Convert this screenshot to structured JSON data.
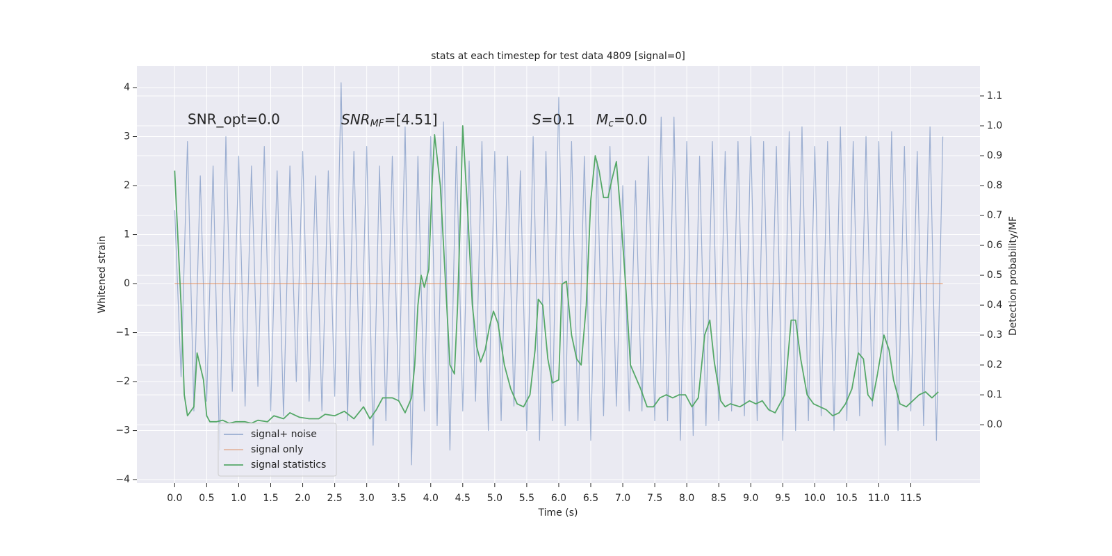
{
  "chart_data": {
    "type": "line",
    "title": "stats at each timestep for test data 4809 [signal=0]",
    "xlabel": "Time (s)",
    "ylabel": "Whitened strain",
    "y2label": "Detection probability/MF",
    "xlim": [
      -0.59,
      12.58
    ],
    "ylim": [
      -4.07,
      4.44
    ],
    "y2lim": [
      -0.195,
      1.2
    ],
    "xticks": [
      {
        "value": 0,
        "label": "0.0"
      },
      0.5,
      {
        "value": 1,
        "label": "1.0"
      },
      1.5,
      {
        "value": 2,
        "label": "2.0"
      },
      2.5,
      {
        "value": 3,
        "label": "3.0"
      },
      3.5,
      {
        "value": 4,
        "label": "4.0"
      },
      4.5,
      {
        "value": 5,
        "label": "5.0"
      },
      5.5,
      {
        "value": 6,
        "label": "6.0"
      },
      6.5,
      {
        "value": 7,
        "label": "7.0"
      },
      7.5,
      {
        "value": 8,
        "label": "8.0"
      },
      8.5,
      {
        "value": 9,
        "label": "9.0"
      },
      9.5,
      {
        "value": 10,
        "label": "10.0"
      },
      10.5,
      {
        "value": 11,
        "label": "11.0"
      },
      11.5
    ],
    "yticks": [
      {
        "value": -4,
        "label": "−4"
      },
      {
        "value": -3,
        "label": "−3"
      },
      {
        "value": -2,
        "label": "−2"
      },
      {
        "value": -1,
        "label": "−1"
      },
      0,
      1,
      2,
      3,
      4
    ],
    "y2ticks": [
      {
        "value": 0,
        "label": "0.0"
      },
      0.1,
      0.2,
      0.3,
      0.4,
      0.5,
      0.6,
      0.7,
      0.8,
      0.9,
      {
        "value": 1,
        "label": "1.0"
      },
      1.1
    ],
    "grid": true,
    "legend": "lower left",
    "background": "#eaeaf2",
    "annotations": [
      {
        "text": "SNR_opt=0.0"
      },
      {
        "main": "SNR",
        "sub": "MF",
        "rest": "=[4.51]"
      },
      {
        "main": "S",
        "rest": "=0.1"
      },
      {
        "main": "M",
        "sub": "c",
        "rest": "=0.0"
      }
    ],
    "series": [
      {
        "name": "signal+ noise",
        "color": "#4c72b0",
        "opacity": 0.5,
        "x": [
          0,
          0.1,
          0.2,
          0.3,
          0.4,
          0.5,
          0.6,
          0.7,
          0.8,
          0.9,
          1,
          1.1,
          1.2,
          1.3,
          1.4,
          1.5,
          1.6,
          1.7,
          1.8,
          1.9,
          2,
          2.1,
          2.2,
          2.3,
          2.4,
          2.5,
          2.6,
          2.7,
          2.8,
          2.9,
          3,
          3.1,
          3.2,
          3.3,
          3.4,
          3.5,
          3.6,
          3.7,
          3.8,
          3.9,
          4,
          4.1,
          4.2,
          4.3,
          4.4,
          4.5,
          4.6,
          4.7,
          4.8,
          4.9,
          5,
          5.1,
          5.2,
          5.3,
          5.4,
          5.5,
          5.6,
          5.7,
          5.8,
          5.9,
          6,
          6.1,
          6.2,
          6.3,
          6.4,
          6.5,
          6.6,
          6.7,
          6.8,
          6.9,
          7,
          7.1,
          7.2,
          7.3,
          7.4,
          7.5,
          7.6,
          7.7,
          7.8,
          7.9,
          8,
          8.1,
          8.2,
          8.3,
          8.4,
          8.5,
          8.6,
          8.7,
          8.8,
          8.9,
          9,
          9.1,
          9.2,
          9.3,
          9.4,
          9.5,
          9.6,
          9.7,
          9.8,
          9.9,
          10,
          10.1,
          10.2,
          10.3,
          10.4,
          10.5,
          10.6,
          10.7,
          10.8,
          10.9,
          11,
          11.1,
          11.2,
          11.3,
          11.4,
          11.5,
          11.6,
          11.7,
          11.8,
          11.9,
          12
        ],
        "values": [
          1.5,
          -1.9,
          2.9,
          -2.6,
          2.2,
          -2.4,
          2.4,
          -3.4,
          3.0,
          -2.2,
          2.6,
          -2.5,
          2.4,
          -2.1,
          2.8,
          -2.6,
          2.3,
          -2.7,
          2.4,
          -2.0,
          2.7,
          -2.4,
          2.2,
          -2.6,
          2.3,
          -2.3,
          4.1,
          -2.8,
          2.7,
          -2.4,
          2.8,
          -3.3,
          2.4,
          -2.8,
          2.6,
          -2.4,
          3.2,
          -3.7,
          2.6,
          -2.6,
          3.0,
          -2.9,
          3.3,
          -3.4,
          2.8,
          -2.6,
          2.5,
          -2.4,
          2.9,
          -3.0,
          2.7,
          -2.8,
          2.6,
          -2.5,
          2.3,
          -3.0,
          3.0,
          -3.2,
          2.7,
          -2.8,
          3.8,
          -2.9,
          2.9,
          -2.8,
          2.6,
          -3.2,
          2.5,
          -2.7,
          2.8,
          -2.5,
          2.0,
          -2.6,
          2.1,
          -2.6,
          2.6,
          -2.8,
          3.4,
          -2.8,
          3.4,
          -3.2,
          2.9,
          -3.1,
          2.6,
          -2.9,
          2.9,
          -2.8,
          2.7,
          -2.6,
          2.9,
          -2.7,
          3.0,
          -2.8,
          2.9,
          -2.6,
          2.8,
          -3.2,
          3.1,
          -3.0,
          3.2,
          -2.8,
          2.8,
          -2.7,
          2.9,
          -3.0,
          3.2,
          -2.8,
          2.9,
          -2.7,
          3.0,
          -2.5,
          2.9,
          -3.3,
          3.1,
          -3.0,
          2.8,
          -2.6,
          2.7,
          -2.9,
          3.2,
          -3.2,
          3.0
        ]
      },
      {
        "name": "signal only",
        "color": "#dd8452",
        "opacity": 0.5,
        "x": [
          0,
          12
        ],
        "values": [
          0,
          0
        ]
      },
      {
        "name": "signal statistics",
        "color": "#55a868",
        "opacity": 1,
        "axis": "y2",
        "x": [
          0,
          0.1,
          0.15,
          0.2,
          0.3,
          0.35,
          0.45,
          0.5,
          0.55,
          0.65,
          0.75,
          0.85,
          0.95,
          1.1,
          1.2,
          1.3,
          1.45,
          1.55,
          1.7,
          1.8,
          1.95,
          2.1,
          2.25,
          2.35,
          2.5,
          2.65,
          2.8,
          2.95,
          3.05,
          3.15,
          3.25,
          3.4,
          3.5,
          3.6,
          3.7,
          3.75,
          3.8,
          3.85,
          3.9,
          3.97,
          4.02,
          4.06,
          4.15,
          4.25,
          4.3,
          4.37,
          4.42,
          4.47,
          4.5,
          4.58,
          4.65,
          4.72,
          4.78,
          4.85,
          4.92,
          4.98,
          5.05,
          5.15,
          5.25,
          5.35,
          5.45,
          5.55,
          5.63,
          5.68,
          5.75,
          5.83,
          5.9,
          6.0,
          6.05,
          6.12,
          6.2,
          6.28,
          6.35,
          6.43,
          6.5,
          6.57,
          6.63,
          6.7,
          6.77,
          6.83,
          6.9,
          6.97,
          7.05,
          7.12,
          7.18,
          7.28,
          7.38,
          7.48,
          7.58,
          7.68,
          7.78,
          7.88,
          7.98,
          8.08,
          8.18,
          8.28,
          8.36,
          8.43,
          8.53,
          8.6,
          8.68,
          8.83,
          8.98,
          9.08,
          9.18,
          9.28,
          9.38,
          9.53,
          9.63,
          9.7,
          9.78,
          9.88,
          9.98,
          10.08,
          10.18,
          10.28,
          10.38,
          10.48,
          10.58,
          10.68,
          10.76,
          10.83,
          10.9,
          10.98,
          11.08,
          11.16,
          11.23,
          11.33,
          11.43,
          11.53,
          11.63,
          11.73,
          11.83,
          11.93
        ],
        "values": [
          0.85,
          0.4,
          0.1,
          0.03,
          0.06,
          0.24,
          0.15,
          0.03,
          0.01,
          0.01,
          0.015,
          0.005,
          0.01,
          0.01,
          0.005,
          0.015,
          0.01,
          0.03,
          0.02,
          0.04,
          0.025,
          0.02,
          0.02,
          0.035,
          0.03,
          0.045,
          0.02,
          0.06,
          0.02,
          0.05,
          0.09,
          0.09,
          0.08,
          0.04,
          0.09,
          0.2,
          0.4,
          0.5,
          0.46,
          0.52,
          0.8,
          0.97,
          0.8,
          0.4,
          0.2,
          0.17,
          0.4,
          0.75,
          1.0,
          0.7,
          0.4,
          0.26,
          0.21,
          0.25,
          0.33,
          0.38,
          0.34,
          0.2,
          0.12,
          0.07,
          0.06,
          0.1,
          0.25,
          0.42,
          0.4,
          0.22,
          0.14,
          0.15,
          0.47,
          0.48,
          0.3,
          0.22,
          0.2,
          0.4,
          0.75,
          0.9,
          0.85,
          0.76,
          0.76,
          0.82,
          0.88,
          0.7,
          0.45,
          0.2,
          0.17,
          0.12,
          0.06,
          0.06,
          0.09,
          0.1,
          0.09,
          0.1,
          0.1,
          0.06,
          0.09,
          0.3,
          0.35,
          0.21,
          0.08,
          0.06,
          0.07,
          0.06,
          0.08,
          0.07,
          0.08,
          0.05,
          0.04,
          0.1,
          0.35,
          0.35,
          0.22,
          0.1,
          0.07,
          0.06,
          0.05,
          0.03,
          0.04,
          0.07,
          0.12,
          0.24,
          0.22,
          0.1,
          0.08,
          0.17,
          0.3,
          0.25,
          0.15,
          0.07,
          0.06,
          0.08,
          0.1,
          0.11,
          0.09,
          0.11
        ]
      }
    ]
  }
}
